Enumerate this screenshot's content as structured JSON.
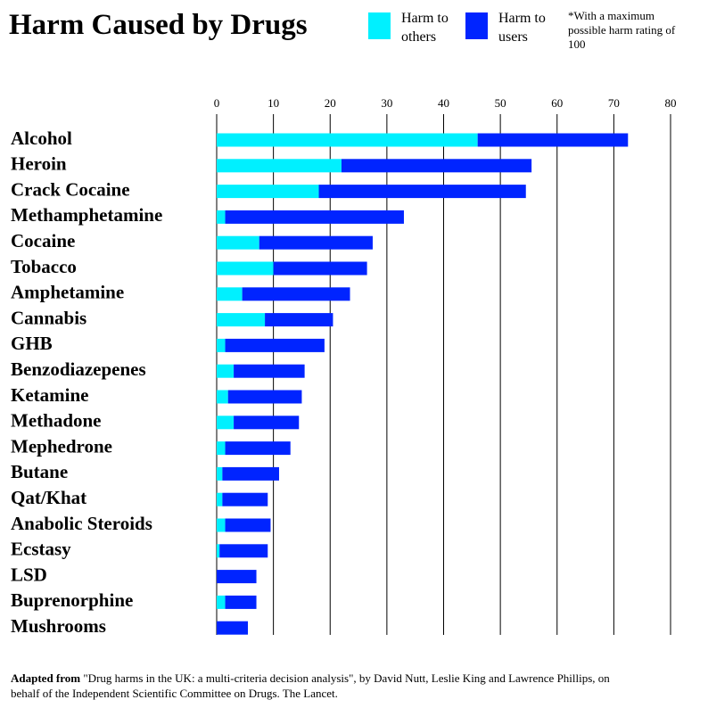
{
  "chart_data": {
    "type": "stacked-barh",
    "title": "Harm Caused by Drugs",
    "note": "*With a maximum possible harm rating of 100",
    "source_prefix": "Adapted from",
    "source_text": "\"Drug harms in the UK: a multi-criteria decision analysis\", by David Nutt, Leslie King and Lawrence Phillips, on behalf of the Independent Scientific Committee on Drugs. The Lancet.",
    "categories": [
      "Alcohol",
      "Heroin",
      "Crack Cocaine",
      "Methamphetamine",
      "Cocaine",
      "Tobacco",
      "Amphetamine",
      "Cannabis",
      "GHB",
      "Benzodiazepenes",
      "Ketamine",
      "Methadone",
      "Mephedrone",
      "Butane",
      "Qat/Khat",
      "Anabolic Steroids",
      "Ecstasy",
      "LSD",
      "Buprenorphine",
      "Mushrooms"
    ],
    "series": [
      {
        "name": "Harm to others",
        "color": "#00f0ff",
        "values": [
          46,
          22,
          18,
          1.5,
          7.5,
          10,
          4.5,
          8.5,
          1.5,
          3,
          2,
          3,
          1.5,
          1,
          1,
          1.5,
          0.5,
          0,
          1.5,
          0
        ]
      },
      {
        "name": "Harm to users",
        "color": "#0024ff",
        "values": [
          26.5,
          33.5,
          36.5,
          31.5,
          20,
          16.5,
          19,
          12,
          17.5,
          12.5,
          13,
          11.5,
          11.5,
          10,
          8,
          8,
          8.5,
          7,
          5.5,
          5.5
        ]
      }
    ],
    "xlim": [
      0,
      80
    ],
    "xticks": [
      0,
      10,
      20,
      30,
      40,
      50,
      60,
      70,
      80
    ],
    "grid": true
  }
}
